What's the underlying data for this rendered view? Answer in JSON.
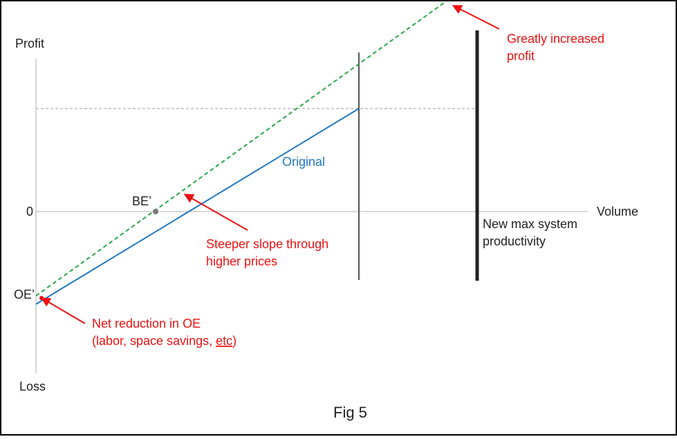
{
  "axis": {
    "y_top_label": "Profit",
    "y_bottom_label": "Loss",
    "x_label": "Volume",
    "zero_label": "0"
  },
  "lines": {
    "original_label": "Original",
    "original_color": "#1f77c4",
    "new_color": "#2aa84a"
  },
  "points": {
    "be_prime": "BE’",
    "oe_prime": "OE’"
  },
  "capacity": {
    "new_max_line1": "New max system",
    "new_max_line2": "productivity"
  },
  "annotations": {
    "color": "#ee1111",
    "greatly_line1": "Greatly increased",
    "greatly_line2": "profit",
    "steeper_line1": "Steeper slope through",
    "steeper_line2": "higher prices",
    "net_line1": "Net reduction in OE",
    "net_line2_prefix": "(labor, space savings, ",
    "net_line2_underlined": "etc",
    "net_line2_suffix": ")"
  },
  "caption": "Fig 5"
}
